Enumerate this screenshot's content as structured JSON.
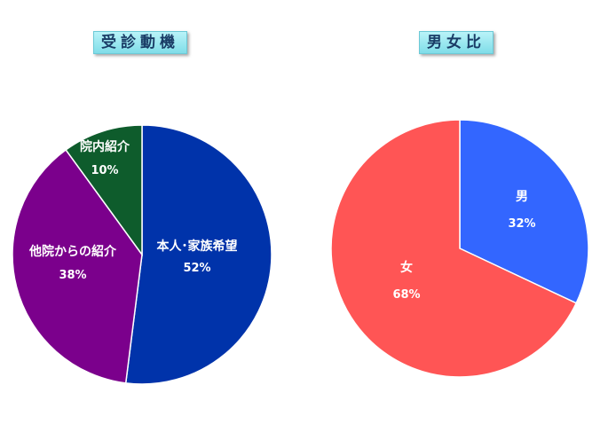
{
  "chart_data": [
    {
      "type": "pie",
      "title": "受診動機",
      "slices": [
        {
          "label": "本人･家族希望",
          "value": 52,
          "value_label": "52%",
          "color": "#0033aa"
        },
        {
          "label": "他院からの紹介",
          "value": 38,
          "value_label": "38%",
          "color": "#7b008c"
        },
        {
          "label": "院内紹介",
          "value": 10,
          "value_label": "10%",
          "color": "#0e5c2c"
        }
      ]
    },
    {
      "type": "pie",
      "title": "男女比",
      "slices": [
        {
          "label": "男",
          "value": 32,
          "value_label": "32%",
          "color": "#3366ff"
        },
        {
          "label": "女",
          "value": 68,
          "value_label": "68%",
          "color": "#ff5555"
        }
      ]
    }
  ]
}
